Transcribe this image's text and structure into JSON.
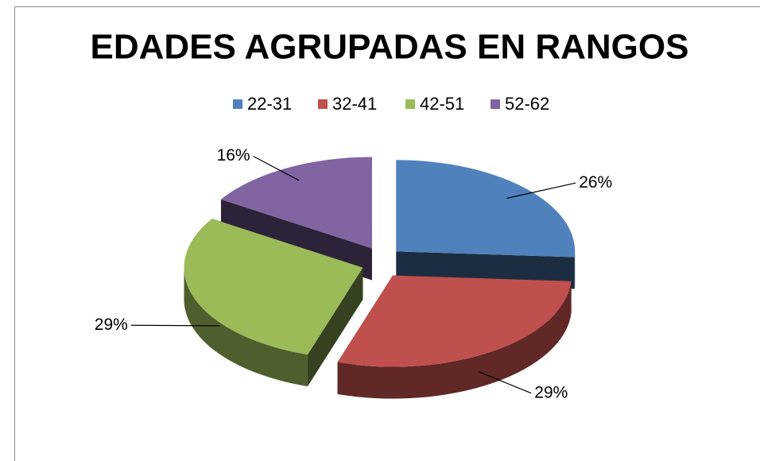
{
  "chart_data": {
    "type": "pie3d",
    "title": "EDADES AGRUPADAS EN RANGOS",
    "categories": [
      "22-31",
      "32-41",
      "42-51",
      "52-62"
    ],
    "values": [
      26,
      29,
      29,
      16
    ],
    "value_labels": [
      "26%",
      "29%",
      "29%",
      "16%"
    ],
    "colors": [
      "#4f81bd",
      "#c0504d",
      "#9bbb59",
      "#8064a2"
    ],
    "legend": "top"
  }
}
